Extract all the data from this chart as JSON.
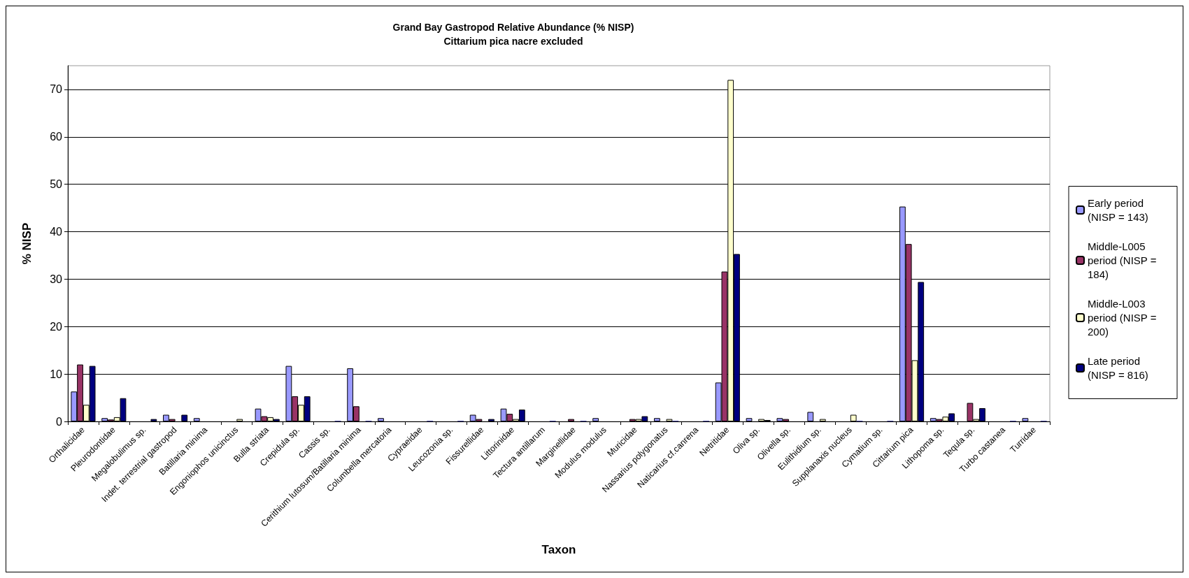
{
  "chart_data": {
    "type": "bar",
    "title": "Grand Bay Gastropod Relative Abundance (% NISP)",
    "subtitle": "Cittarium pica nacre excluded",
    "xlabel": "Taxon",
    "ylabel": "% NISP",
    "categories": [
      "Orthalicidae",
      "Pleurodontidae",
      "Megalobulimus sp.",
      "Indet. terrestrial gastropod",
      "Batillaria minima",
      "Engoniophos unicinctus",
      "Bulla striata",
      "Crepidula sp.",
      "Cassis sp.",
      "Cerithium lutosum/Batillaria minima",
      "Columbella mercatoria",
      "Cypraeidae",
      "Leucozonia sp.",
      "Fissurellidae",
      "Littorinidae",
      "Tectura antillarum",
      "Marginellidae",
      "Modulus modulus",
      "Muricidae",
      "Nassarius polygonatus",
      "Naticarius cf.canrena",
      "Netritidae",
      "Oliva sp.",
      "Olivella sp.",
      "Eulithidium sp.",
      "Supplanaxis nucleus",
      "Cymatium sp.",
      "Cittarium pica",
      "Lithopoma sp.",
      "Tequla sp.",
      "Turbo castanea",
      "Turridae"
    ],
    "series": [
      {
        "name": "Early period (NISP = 143)",
        "color": "#9999ff",
        "values": [
          6.3,
          0.7,
          0,
          1.4,
          0.7,
          0,
          2.7,
          11.7,
          0,
          11.2,
          0.7,
          0,
          0,
          1.4,
          2.7,
          0,
          0,
          0.7,
          0,
          0.7,
          0,
          8.2,
          0.7,
          0.7,
          2.0,
          0,
          0,
          45.3,
          0.7,
          0,
          0,
          0.7
        ]
      },
      {
        "name": "Middle-L005 period (NISP = 184)",
        "color": "#993366",
        "values": [
          12.0,
          0.4,
          0,
          0.5,
          0,
          0,
          1.1,
          5.3,
          0,
          3.2,
          0,
          0,
          0,
          0.5,
          1.6,
          0,
          0.5,
          0,
          0.5,
          0,
          0,
          31.6,
          0,
          0.5,
          0,
          0,
          0,
          37.4,
          0.5,
          3.9,
          0,
          0
        ]
      },
      {
        "name": "Middle-L003 period (NISP = 200)",
        "color": "#ffffcc",
        "values": [
          3.5,
          0.9,
          0,
          0,
          0,
          0.5,
          0.9,
          3.5,
          0,
          0,
          0,
          0,
          0,
          0,
          0.5,
          0,
          0,
          0,
          0.5,
          0.5,
          0,
          72,
          0.5,
          0,
          0.5,
          1.4,
          0,
          12.9,
          1.0,
          0.5,
          0,
          0
        ]
      },
      {
        "name": "Late period (NISP = 816)",
        "color": "#000080",
        "values": [
          11.7,
          4.9,
          0.5,
          1.4,
          0,
          0,
          0.5,
          5.3,
          0.1,
          0.1,
          0,
          0.1,
          0.1,
          0.5,
          2.5,
          0.1,
          0.1,
          0,
          1.1,
          0.1,
          0.1,
          35.3,
          0.3,
          0,
          0,
          0.1,
          0.1,
          29.4,
          1.7,
          2.8,
          0.1,
          0.1
        ]
      }
    ],
    "ylim": [
      0,
      75
    ],
    "yticks": [
      0,
      10,
      20,
      30,
      40,
      50,
      60,
      70
    ],
    "grid": "y",
    "legend": "right"
  }
}
